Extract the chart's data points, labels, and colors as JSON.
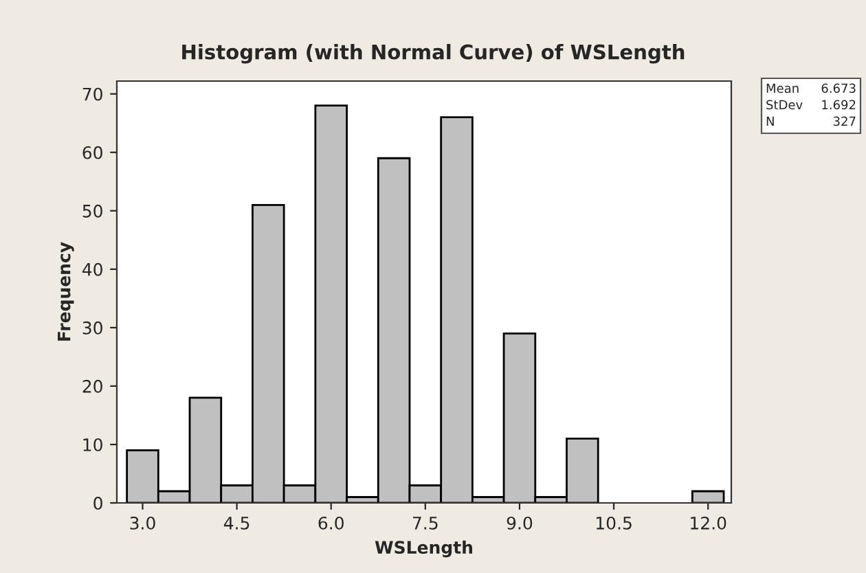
{
  "chart_data": {
    "type": "histogram",
    "title": "Histogram (with Normal Curve) of WSLength",
    "xlabel": "WSLength",
    "ylabel": "Frequency",
    "bins": [
      2.75,
      3.25,
      3.75,
      4.25,
      4.75,
      5.25,
      5.75,
      6.25,
      6.75,
      7.25,
      7.75,
      8.25,
      8.75,
      9.25,
      9.75,
      10.25,
      10.75,
      11.25,
      11.75,
      12.25
    ],
    "values": [
      9,
      2,
      18,
      3,
      51,
      3,
      68,
      1,
      59,
      3,
      66,
      1,
      29,
      1,
      11,
      0,
      0,
      0,
      2
    ],
    "color": "#c0c0c0",
    "xlim": [
      2.59,
      12.37
    ],
    "ylim": [
      0,
      72.2
    ],
    "xticks": [
      {
        "value": 3.0,
        "label": "3.0"
      },
      {
        "value": 4.5,
        "label": "4.5"
      },
      {
        "value": 6.0,
        "label": "6.0"
      },
      {
        "value": 7.5,
        "label": "7.5"
      },
      {
        "value": 9.0,
        "label": "9.0"
      },
      {
        "value": 10.5,
        "label": "10.5"
      },
      {
        "value": 12.0,
        "label": "12.0"
      }
    ],
    "yticks": [
      0,
      10,
      20,
      30,
      40,
      50,
      60,
      70
    ],
    "annotations": [
      "Mean",
      "6.673",
      "StDev",
      "1.692",
      "N",
      "327"
    ],
    "grid": false,
    "legend": false
  }
}
